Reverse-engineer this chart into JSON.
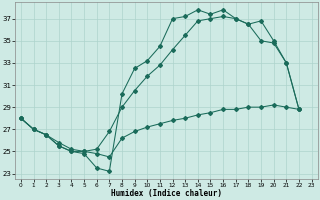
{
  "title": "",
  "xlabel": "Humidex (Indice chaleur)",
  "bg_color": "#ceeae4",
  "grid_color": "#aed4cc",
  "line_color": "#1a6b5a",
  "xlim": [
    -0.5,
    23.5
  ],
  "ylim": [
    22.5,
    38.5
  ],
  "xticks": [
    0,
    1,
    2,
    3,
    4,
    5,
    6,
    7,
    8,
    9,
    10,
    11,
    12,
    13,
    14,
    15,
    16,
    17,
    18,
    19,
    20,
    21,
    22,
    23
  ],
  "yticks": [
    23,
    25,
    27,
    29,
    31,
    33,
    35,
    37
  ],
  "curve1_x": [
    0,
    1,
    2,
    3,
    4,
    5,
    6,
    7,
    8,
    9,
    10,
    11,
    12,
    13,
    14,
    15,
    16,
    17,
    18,
    19,
    20,
    21,
    22
  ],
  "curve1_y": [
    28.0,
    27.0,
    26.5,
    25.5,
    25.0,
    24.8,
    23.5,
    23.2,
    30.2,
    32.5,
    33.2,
    34.5,
    37.0,
    37.2,
    37.8,
    37.4,
    37.8,
    37.0,
    36.5,
    36.8,
    35.0,
    33.0,
    28.8
  ],
  "curve2_x": [
    0,
    1,
    2,
    3,
    4,
    5,
    6,
    7,
    8,
    9,
    10,
    11,
    12,
    13,
    14,
    15,
    16,
    17,
    18,
    19,
    20,
    21,
    22
  ],
  "curve2_y": [
    28.0,
    27.0,
    26.5,
    25.5,
    25.0,
    25.0,
    25.2,
    26.8,
    29.0,
    30.5,
    31.8,
    32.8,
    34.2,
    35.5,
    36.8,
    37.0,
    37.2,
    37.0,
    36.5,
    35.0,
    34.8,
    33.0,
    28.8
  ],
  "curve3_x": [
    0,
    1,
    2,
    3,
    4,
    5,
    6,
    7,
    8,
    9,
    10,
    11,
    12,
    13,
    14,
    15,
    16,
    17,
    18,
    19,
    20,
    21,
    22
  ],
  "curve3_y": [
    28.0,
    27.0,
    26.5,
    25.8,
    25.2,
    25.0,
    24.8,
    24.5,
    26.2,
    26.8,
    27.2,
    27.5,
    27.8,
    28.0,
    28.3,
    28.5,
    28.8,
    28.8,
    29.0,
    29.0,
    29.2,
    29.0,
    28.8
  ]
}
